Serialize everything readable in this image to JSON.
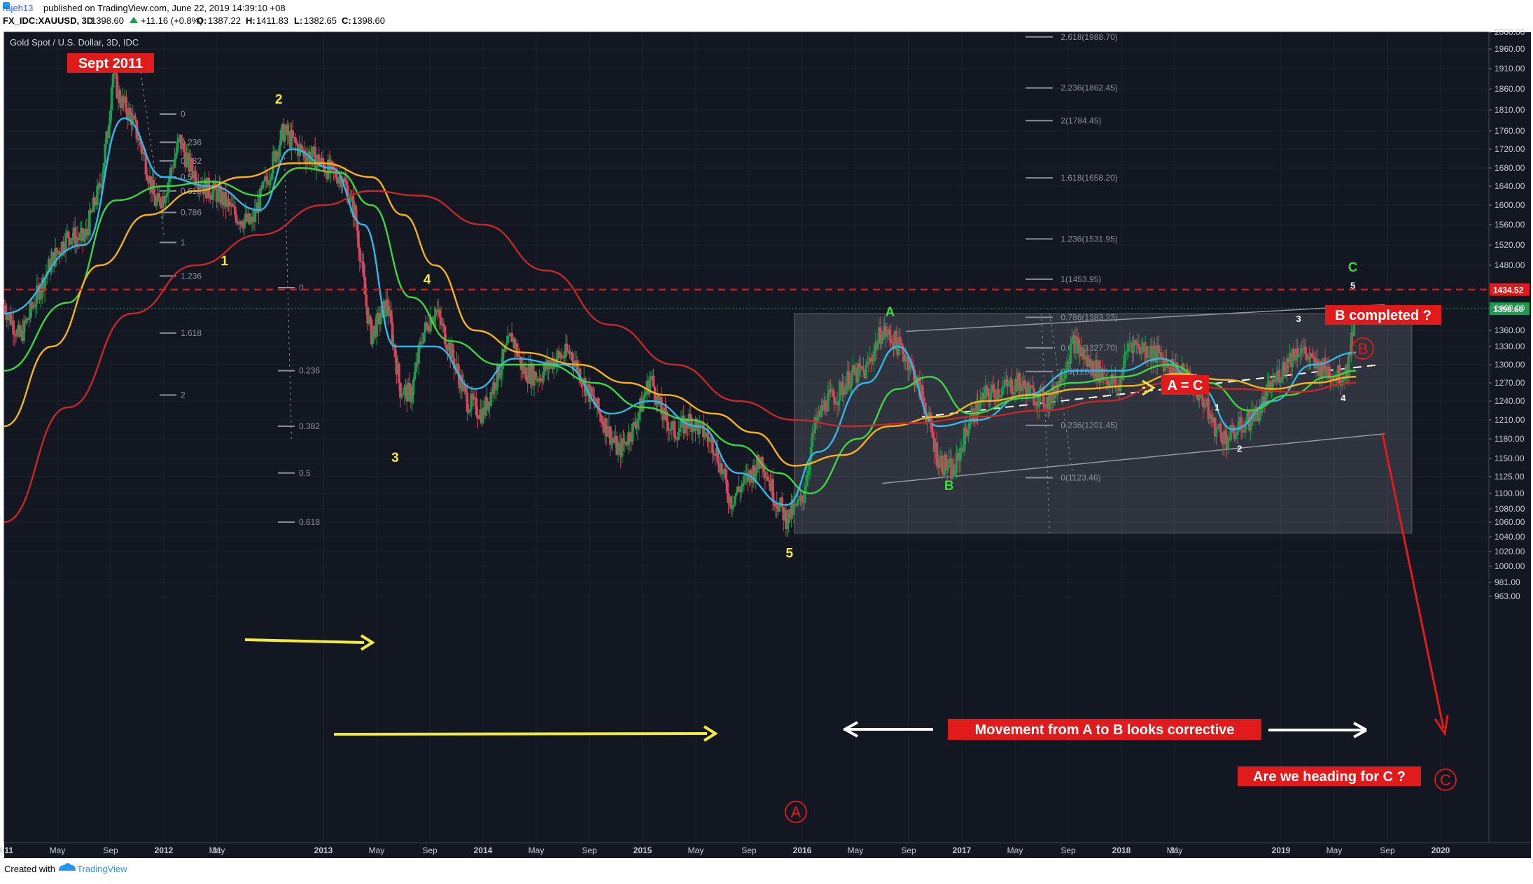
{
  "header": {
    "user": "rajeh13",
    "published": "published on TradingView.com, June 22, 2019 14:39:10 +08",
    "symbol": "FX_IDC:XAUUSD, 3D",
    "last": "1398.60",
    "change": "+11.16 (+0.8%)",
    "o_label": "O:",
    "o_value": "1387.22",
    "h_label": "H:",
    "h_value": "1411.83",
    "l_label": "L:",
    "l_value": "1382.65",
    "c_label": "C:",
    "c_value": "1398.60"
  },
  "footer": {
    "created_with": "Created with",
    "brand": "TradingView"
  },
  "chart_data": {
    "type": "candlestick",
    "title": "Gold Spot / U.S. Dollar, 3D, IDC",
    "ylim": [
      963,
      2000
    ],
    "y_ticks": [
      "2000.00",
      "1960.00",
      "1910.00",
      "1860.00",
      "1810.00",
      "1760.00",
      "1720.00",
      "1680.00",
      "1640.00",
      "1600.00",
      "1560.00",
      "1520.00",
      "1480.00",
      "1400.00",
      "1360.00",
      "1330.00",
      "1300.00",
      "1270.00",
      "1240.00",
      "1210.00",
      "1180.00",
      "1150.00",
      "1125.00",
      "1100.00",
      "1080.00",
      "1060.00",
      "1040.00",
      "1020.00",
      "1000.00",
      "981.00",
      "963.00"
    ],
    "x_ticks": [
      "2011",
      "May",
      "Sep",
      "2012",
      "May",
      "31",
      "2013",
      "May",
      "Sep",
      "2014",
      "May",
      "Sep",
      "2015",
      "May",
      "Sep",
      "2016",
      "May",
      "Sep",
      "2017",
      "May",
      "Sep",
      "2018",
      "May",
      "31",
      "2019",
      "May",
      "Sep",
      "2020"
    ],
    "price_labels": [
      {
        "text": "1434.52",
        "value": 1434.52,
        "color": "#e11b1b"
      },
      {
        "text": "1398.60",
        "value": 1398.6,
        "color": "#1f9a4c"
      }
    ],
    "price_path": [
      [
        2011.0,
        1405
      ],
      [
        2011.1,
        1345
      ],
      [
        2011.2,
        1420
      ],
      [
        2011.3,
        1490
      ],
      [
        2011.4,
        1540
      ],
      [
        2011.5,
        1530
      ],
      [
        2011.6,
        1640
      ],
      [
        2011.65,
        1760
      ],
      [
        2011.68,
        1900
      ],
      [
        2011.72,
        1840
      ],
      [
        2011.8,
        1790
      ],
      [
        2011.88,
        1700
      ],
      [
        2011.95,
        1600
      ],
      [
        2012.0,
        1620
      ],
      [
        2012.1,
        1740
      ],
      [
        2012.15,
        1690
      ],
      [
        2012.25,
        1640
      ],
      [
        2012.35,
        1620
      ],
      [
        2012.45,
        1580
      ],
      [
        2012.55,
        1560
      ],
      [
        2012.65,
        1660
      ],
      [
        2012.75,
        1760
      ],
      [
        2012.85,
        1720
      ],
      [
        2012.95,
        1700
      ],
      [
        2013.05,
        1670
      ],
      [
        2013.12,
        1660
      ],
      [
        2013.2,
        1580
      ],
      [
        2013.27,
        1400
      ],
      [
        2013.3,
        1350
      ],
      [
        2013.4,
        1410
      ],
      [
        2013.48,
        1260
      ],
      [
        2013.55,
        1250
      ],
      [
        2013.62,
        1350
      ],
      [
        2013.7,
        1400
      ],
      [
        2013.8,
        1320
      ],
      [
        2013.9,
        1240
      ],
      [
        2014.0,
        1220
      ],
      [
        2014.1,
        1290
      ],
      [
        2014.18,
        1350
      ],
      [
        2014.25,
        1290
      ],
      [
        2014.35,
        1280
      ],
      [
        2014.45,
        1310
      ],
      [
        2014.55,
        1320
      ],
      [
        2014.65,
        1260
      ],
      [
        2014.75,
        1210
      ],
      [
        2014.85,
        1160
      ],
      [
        2014.95,
        1200
      ],
      [
        2015.05,
        1280
      ],
      [
        2015.12,
        1220
      ],
      [
        2015.2,
        1190
      ],
      [
        2015.3,
        1210
      ],
      [
        2015.38,
        1190
      ],
      [
        2015.45,
        1170
      ],
      [
        2015.55,
        1090
      ],
      [
        2015.65,
        1120
      ],
      [
        2015.75,
        1150
      ],
      [
        2015.82,
        1100
      ],
      [
        2015.9,
        1065
      ],
      [
        2016.0,
        1090
      ],
      [
        2016.08,
        1200
      ],
      [
        2016.15,
        1240
      ],
      [
        2016.22,
        1250
      ],
      [
        2016.3,
        1280
      ],
      [
        2016.4,
        1290
      ],
      [
        2016.5,
        1360
      ],
      [
        2016.58,
        1340
      ],
      [
        2016.66,
        1310
      ],
      [
        2016.75,
        1250
      ],
      [
        2016.85,
        1150
      ],
      [
        2016.95,
        1130
      ],
      [
        2017.05,
        1210
      ],
      [
        2017.15,
        1250
      ],
      [
        2017.25,
        1260
      ],
      [
        2017.35,
        1270
      ],
      [
        2017.45,
        1250
      ],
      [
        2017.55,
        1240
      ],
      [
        2017.65,
        1300
      ],
      [
        2017.7,
        1340
      ],
      [
        2017.8,
        1300
      ],
      [
        2017.9,
        1280
      ],
      [
        2017.98,
        1260
      ],
      [
        2018.05,
        1340
      ],
      [
        2018.12,
        1330
      ],
      [
        2018.2,
        1320
      ],
      [
        2018.3,
        1300
      ],
      [
        2018.4,
        1280
      ],
      [
        2018.5,
        1250
      ],
      [
        2018.58,
        1200
      ],
      [
        2018.66,
        1180
      ],
      [
        2018.75,
        1200
      ],
      [
        2018.85,
        1220
      ],
      [
        2018.95,
        1270
      ],
      [
        2019.05,
        1310
      ],
      [
        2019.12,
        1330
      ],
      [
        2019.2,
        1300
      ],
      [
        2019.3,
        1290
      ],
      [
        2019.38,
        1280
      ],
      [
        2019.42,
        1300
      ],
      [
        2019.44,
        1340
      ],
      [
        2019.46,
        1398.6
      ]
    ],
    "moving_averages": [
      {
        "color": "#33b8e8",
        "path": [
          [
            2011.0,
            1390
          ],
          [
            2011.5,
            1520
          ],
          [
            2011.75,
            1790
          ],
          [
            2012.0,
            1660
          ],
          [
            2012.3,
            1640
          ],
          [
            2012.6,
            1590
          ],
          [
            2012.8,
            1720
          ],
          [
            2013.05,
            1680
          ],
          [
            2013.25,
            1560
          ],
          [
            2013.45,
            1330
          ],
          [
            2013.7,
            1330
          ],
          [
            2013.95,
            1260
          ],
          [
            2014.2,
            1310
          ],
          [
            2014.5,
            1300
          ],
          [
            2014.8,
            1220
          ],
          [
            2015.05,
            1240
          ],
          [
            2015.35,
            1200
          ],
          [
            2015.6,
            1130
          ],
          [
            2015.9,
            1085
          ],
          [
            2016.1,
            1160
          ],
          [
            2016.4,
            1270
          ],
          [
            2016.6,
            1330
          ],
          [
            2016.85,
            1200
          ],
          [
            2017.1,
            1210
          ],
          [
            2017.4,
            1250
          ],
          [
            2017.7,
            1290
          ],
          [
            2018.0,
            1290
          ],
          [
            2018.25,
            1310
          ],
          [
            2018.5,
            1260
          ],
          [
            2018.7,
            1195
          ],
          [
            2018.95,
            1240
          ],
          [
            2019.2,
            1300
          ],
          [
            2019.47,
            1320
          ]
        ]
      },
      {
        "color": "#3fd63f",
        "path": [
          [
            2011.0,
            1290
          ],
          [
            2011.4,
            1410
          ],
          [
            2011.7,
            1610
          ],
          [
            2012.0,
            1640
          ],
          [
            2012.3,
            1650
          ],
          [
            2012.6,
            1620
          ],
          [
            2012.85,
            1680
          ],
          [
            2013.1,
            1670
          ],
          [
            2013.3,
            1600
          ],
          [
            2013.55,
            1420
          ],
          [
            2013.8,
            1340
          ],
          [
            2014.1,
            1300
          ],
          [
            2014.4,
            1300
          ],
          [
            2014.7,
            1270
          ],
          [
            2015.0,
            1230
          ],
          [
            2015.3,
            1210
          ],
          [
            2015.6,
            1170
          ],
          [
            2015.85,
            1130
          ],
          [
            2016.05,
            1100
          ],
          [
            2016.35,
            1180
          ],
          [
            2016.6,
            1260
          ],
          [
            2016.8,
            1280
          ],
          [
            2017.05,
            1220
          ],
          [
            2017.4,
            1245
          ],
          [
            2017.7,
            1270
          ],
          [
            2018.0,
            1280
          ],
          [
            2018.3,
            1300
          ],
          [
            2018.55,
            1270
          ],
          [
            2018.8,
            1225
          ],
          [
            2019.05,
            1250
          ],
          [
            2019.3,
            1280
          ],
          [
            2019.47,
            1290
          ]
        ]
      },
      {
        "color": "#f7b21e",
        "path": [
          [
            2011.0,
            1200
          ],
          [
            2011.3,
            1330
          ],
          [
            2011.6,
            1480
          ],
          [
            2011.9,
            1580
          ],
          [
            2012.2,
            1630
          ],
          [
            2012.5,
            1660
          ],
          [
            2012.8,
            1690
          ],
          [
            2013.0,
            1690
          ],
          [
            2013.3,
            1660
          ],
          [
            2013.5,
            1580
          ],
          [
            2013.7,
            1480
          ],
          [
            2013.95,
            1360
          ],
          [
            2014.25,
            1320
          ],
          [
            2014.6,
            1300
          ],
          [
            2014.9,
            1270
          ],
          [
            2015.15,
            1250
          ],
          [
            2015.45,
            1220
          ],
          [
            2015.7,
            1190
          ],
          [
            2015.95,
            1140
          ],
          [
            2016.25,
            1155
          ],
          [
            2016.55,
            1200
          ],
          [
            2016.85,
            1215
          ],
          [
            2017.15,
            1240
          ],
          [
            2017.45,
            1250
          ],
          [
            2017.75,
            1260
          ],
          [
            2018.05,
            1265
          ],
          [
            2018.35,
            1285
          ],
          [
            2018.65,
            1275
          ],
          [
            2018.95,
            1260
          ],
          [
            2019.2,
            1270
          ],
          [
            2019.47,
            1280
          ]
        ]
      },
      {
        "color": "#c62828",
        "path": [
          [
            2011.0,
            1060
          ],
          [
            2011.4,
            1230
          ],
          [
            2011.8,
            1390
          ],
          [
            2012.2,
            1480
          ],
          [
            2012.6,
            1540
          ],
          [
            2013.0,
            1600
          ],
          [
            2013.3,
            1630
          ],
          [
            2013.6,
            1620
          ],
          [
            2014.0,
            1560
          ],
          [
            2014.4,
            1470
          ],
          [
            2014.8,
            1370
          ],
          [
            2015.2,
            1300
          ],
          [
            2015.6,
            1240
          ],
          [
            2015.95,
            1210
          ],
          [
            2016.3,
            1200
          ],
          [
            2016.7,
            1205
          ],
          [
            2017.1,
            1215
          ],
          [
            2017.5,
            1225
          ],
          [
            2017.9,
            1240
          ],
          [
            2018.3,
            1270
          ],
          [
            2018.7,
            1260
          ],
          [
            2019.1,
            1255
          ],
          [
            2019.47,
            1270
          ]
        ]
      }
    ],
    "fib_levels": [
      {
        "label": "2.618(1988.70)",
        "value": 1988.7
      },
      {
        "label": "2.236(1862.45)",
        "value": 1862.45
      },
      {
        "label": "2(1784.45)",
        "value": 1784.45
      },
      {
        "label": "1.618(1658.20)",
        "value": 1658.2
      },
      {
        "label": "1.236(1531.95)",
        "value": 1531.95
      },
      {
        "label": "1(1453.95)",
        "value": 1453.95
      },
      {
        "label": "0.786(1383.23)",
        "value": 1383.23
      },
      {
        "label": "0.618(1327.70)",
        "value": 1327.7
      },
      {
        "label": "0.5(1288.70)",
        "value": 1288.7
      },
      {
        "label": "0.236(1201.45)",
        "value": 1201.45
      },
      {
        "label": "0(1123.46)",
        "value": 1123.46
      }
    ],
    "fib_left": [
      {
        "label": "0",
        "value": 1800,
        "t": 2012.0
      },
      {
        "label": "0.236",
        "value": 1735,
        "t": 2012.0
      },
      {
        "label": "0.382",
        "value": 1695,
        "t": 2012.0
      },
      {
        "label": "0.5",
        "value": 1660,
        "t": 2012.0
      },
      {
        "label": "0.618",
        "value": 1630,
        "t": 2012.0
      },
      {
        "label": "0.786",
        "value": 1585,
        "t": 2012.0
      },
      {
        "label": "1",
        "value": 1525,
        "t": 2012.0
      },
      {
        "label": "1.236",
        "value": 1460,
        "t": 2012.0
      },
      {
        "label": "1.618",
        "value": 1355,
        "t": 2012.0
      },
      {
        "label": "2",
        "value": 1250,
        "t": 2012.0
      }
    ],
    "fib_mid": [
      {
        "label": "0",
        "value": 1438,
        "t": 2012.75
      },
      {
        "label": "0.236",
        "value": 1290,
        "t": 2012.75
      },
      {
        "label": "0.382",
        "value": 1200,
        "t": 2012.75
      },
      {
        "label": "0.5",
        "value": 1130,
        "t": 2012.75
      },
      {
        "label": "0.618",
        "value": 1060,
        "t": 2012.75
      }
    ],
    "annotations": {
      "sept2011": "Sept 2011",
      "b_completed": "B completed ?",
      "a_eq_c": "A = C",
      "movement": "Movement from A to B looks corrective",
      "heading_c": "Are we heading for C ?",
      "circle_a": "A",
      "circle_b": "B",
      "circle_c": "C",
      "waves": [
        {
          "text": "1",
          "t": 2012.38,
          "v": 1480,
          "cls": "wave-y"
        },
        {
          "text": "2",
          "t": 2012.72,
          "v": 1825,
          "cls": "wave-y"
        },
        {
          "text": "3",
          "t": 2013.45,
          "v": 1145,
          "cls": "wave-y"
        },
        {
          "text": "4",
          "t": 2013.65,
          "v": 1445,
          "cls": "wave-y"
        },
        {
          "text": "5",
          "t": 2015.92,
          "v": 1012,
          "cls": "wave-y"
        },
        {
          "text": "A",
          "t": 2016.55,
          "v": 1385,
          "cls": "wave-g"
        },
        {
          "text": "B",
          "t": 2016.92,
          "v": 1105,
          "cls": "wave-g"
        },
        {
          "text": "C",
          "t": 2019.45,
          "v": 1468,
          "cls": "wave-g"
        },
        {
          "text": "1",
          "t": 2018.6,
          "v": 1225,
          "cls": "wave-w"
        },
        {
          "text": "2",
          "t": 2018.74,
          "v": 1160,
          "cls": "wave-w"
        },
        {
          "text": "3",
          "t": 2019.11,
          "v": 1375,
          "cls": "wave-w"
        },
        {
          "text": "4",
          "t": 2019.39,
          "v": 1240,
          "cls": "wave-w"
        },
        {
          "text": "5",
          "t": 2019.45,
          "v": 1436,
          "cls": "wave-w"
        }
      ]
    },
    "colors": {
      "background": "#131722",
      "up_candle": "#1f9a4c",
      "down_candle": "#d6455d",
      "resistance": "#e11b1b",
      "arrow_yellow": "#f5ea3b",
      "label_bg": "#e11b1b"
    }
  }
}
